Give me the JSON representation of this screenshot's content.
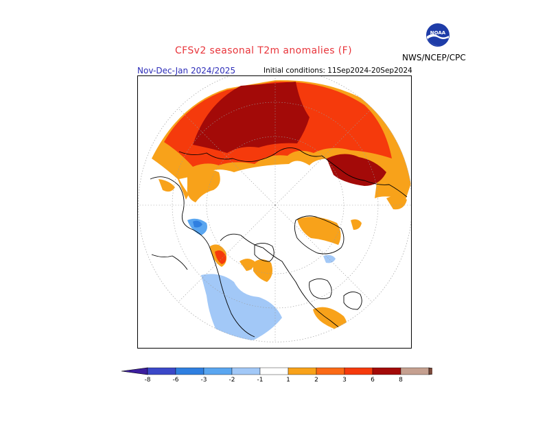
{
  "header": {
    "title": "CFSv2 seasonal T2m anomalies (F)",
    "period": "Nov-Dec-Jan 2024/2025",
    "initial_conditions": "Initial conditions: 11Sep2024-20Sep2024",
    "agency": "NWS/NCEP/CPC",
    "logo_text": "NOAA"
  },
  "map": {
    "projection": "polar stereographic (north)",
    "variable": "T2m anomaly",
    "units": "F"
  },
  "colorbar": {
    "bins": [
      {
        "color": "#3c1e9e",
        "label": "-8"
      },
      {
        "color": "#3b48c8",
        "label": "-6"
      },
      {
        "color": "#2f7fe0",
        "label": "-3"
      },
      {
        "color": "#5aa6f0",
        "label": "-2"
      },
      {
        "color": "#a2c8f7",
        "label": "-1"
      },
      {
        "color": "#ffffff",
        "label": "1"
      },
      {
        "color": "#f8a21a",
        "label": "2"
      },
      {
        "color": "#fb6a16",
        "label": "3"
      },
      {
        "color": "#f53a0c",
        "label": "6"
      },
      {
        "color": "#a30a08",
        "label": "8"
      },
      {
        "color": "#c5a090",
        "label": ""
      },
      {
        "color": "#7a4a3c",
        "label": ""
      }
    ],
    "labels": [
      "-8",
      "-6",
      "-3",
      "-2",
      "-1",
      "1",
      "2",
      "3",
      "6",
      "8"
    ]
  }
}
